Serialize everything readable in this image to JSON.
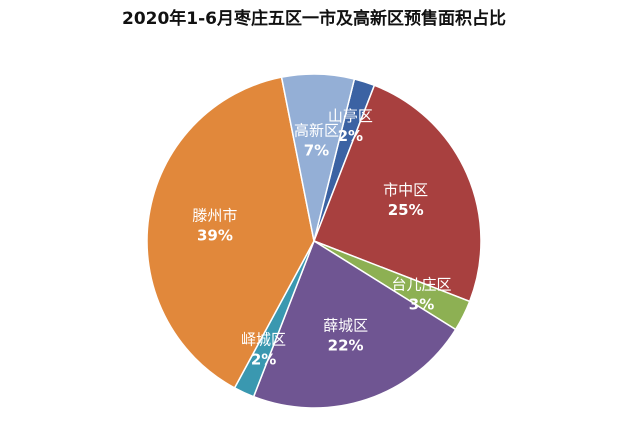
{
  "chart_data": {
    "type": "pie",
    "title": "2020年1-6月枣庄五区一市及高新区预售面积占比",
    "categories": [
      "山亭区",
      "市中区",
      "台儿庄区",
      "薛城区",
      "峄城区",
      "滕州市",
      "高新区"
    ],
    "values": [
      2,
      25,
      3,
      22,
      2,
      39,
      7
    ],
    "value_labels": [
      "2%",
      "25%",
      "3%",
      "22%",
      "2%",
      "39%",
      "7%"
    ],
    "colors": [
      "#3b62a3",
      "#a8403f",
      "#8db053",
      "#6f5592",
      "#3a98b0",
      "#e1883b",
      "#94afd6"
    ]
  }
}
